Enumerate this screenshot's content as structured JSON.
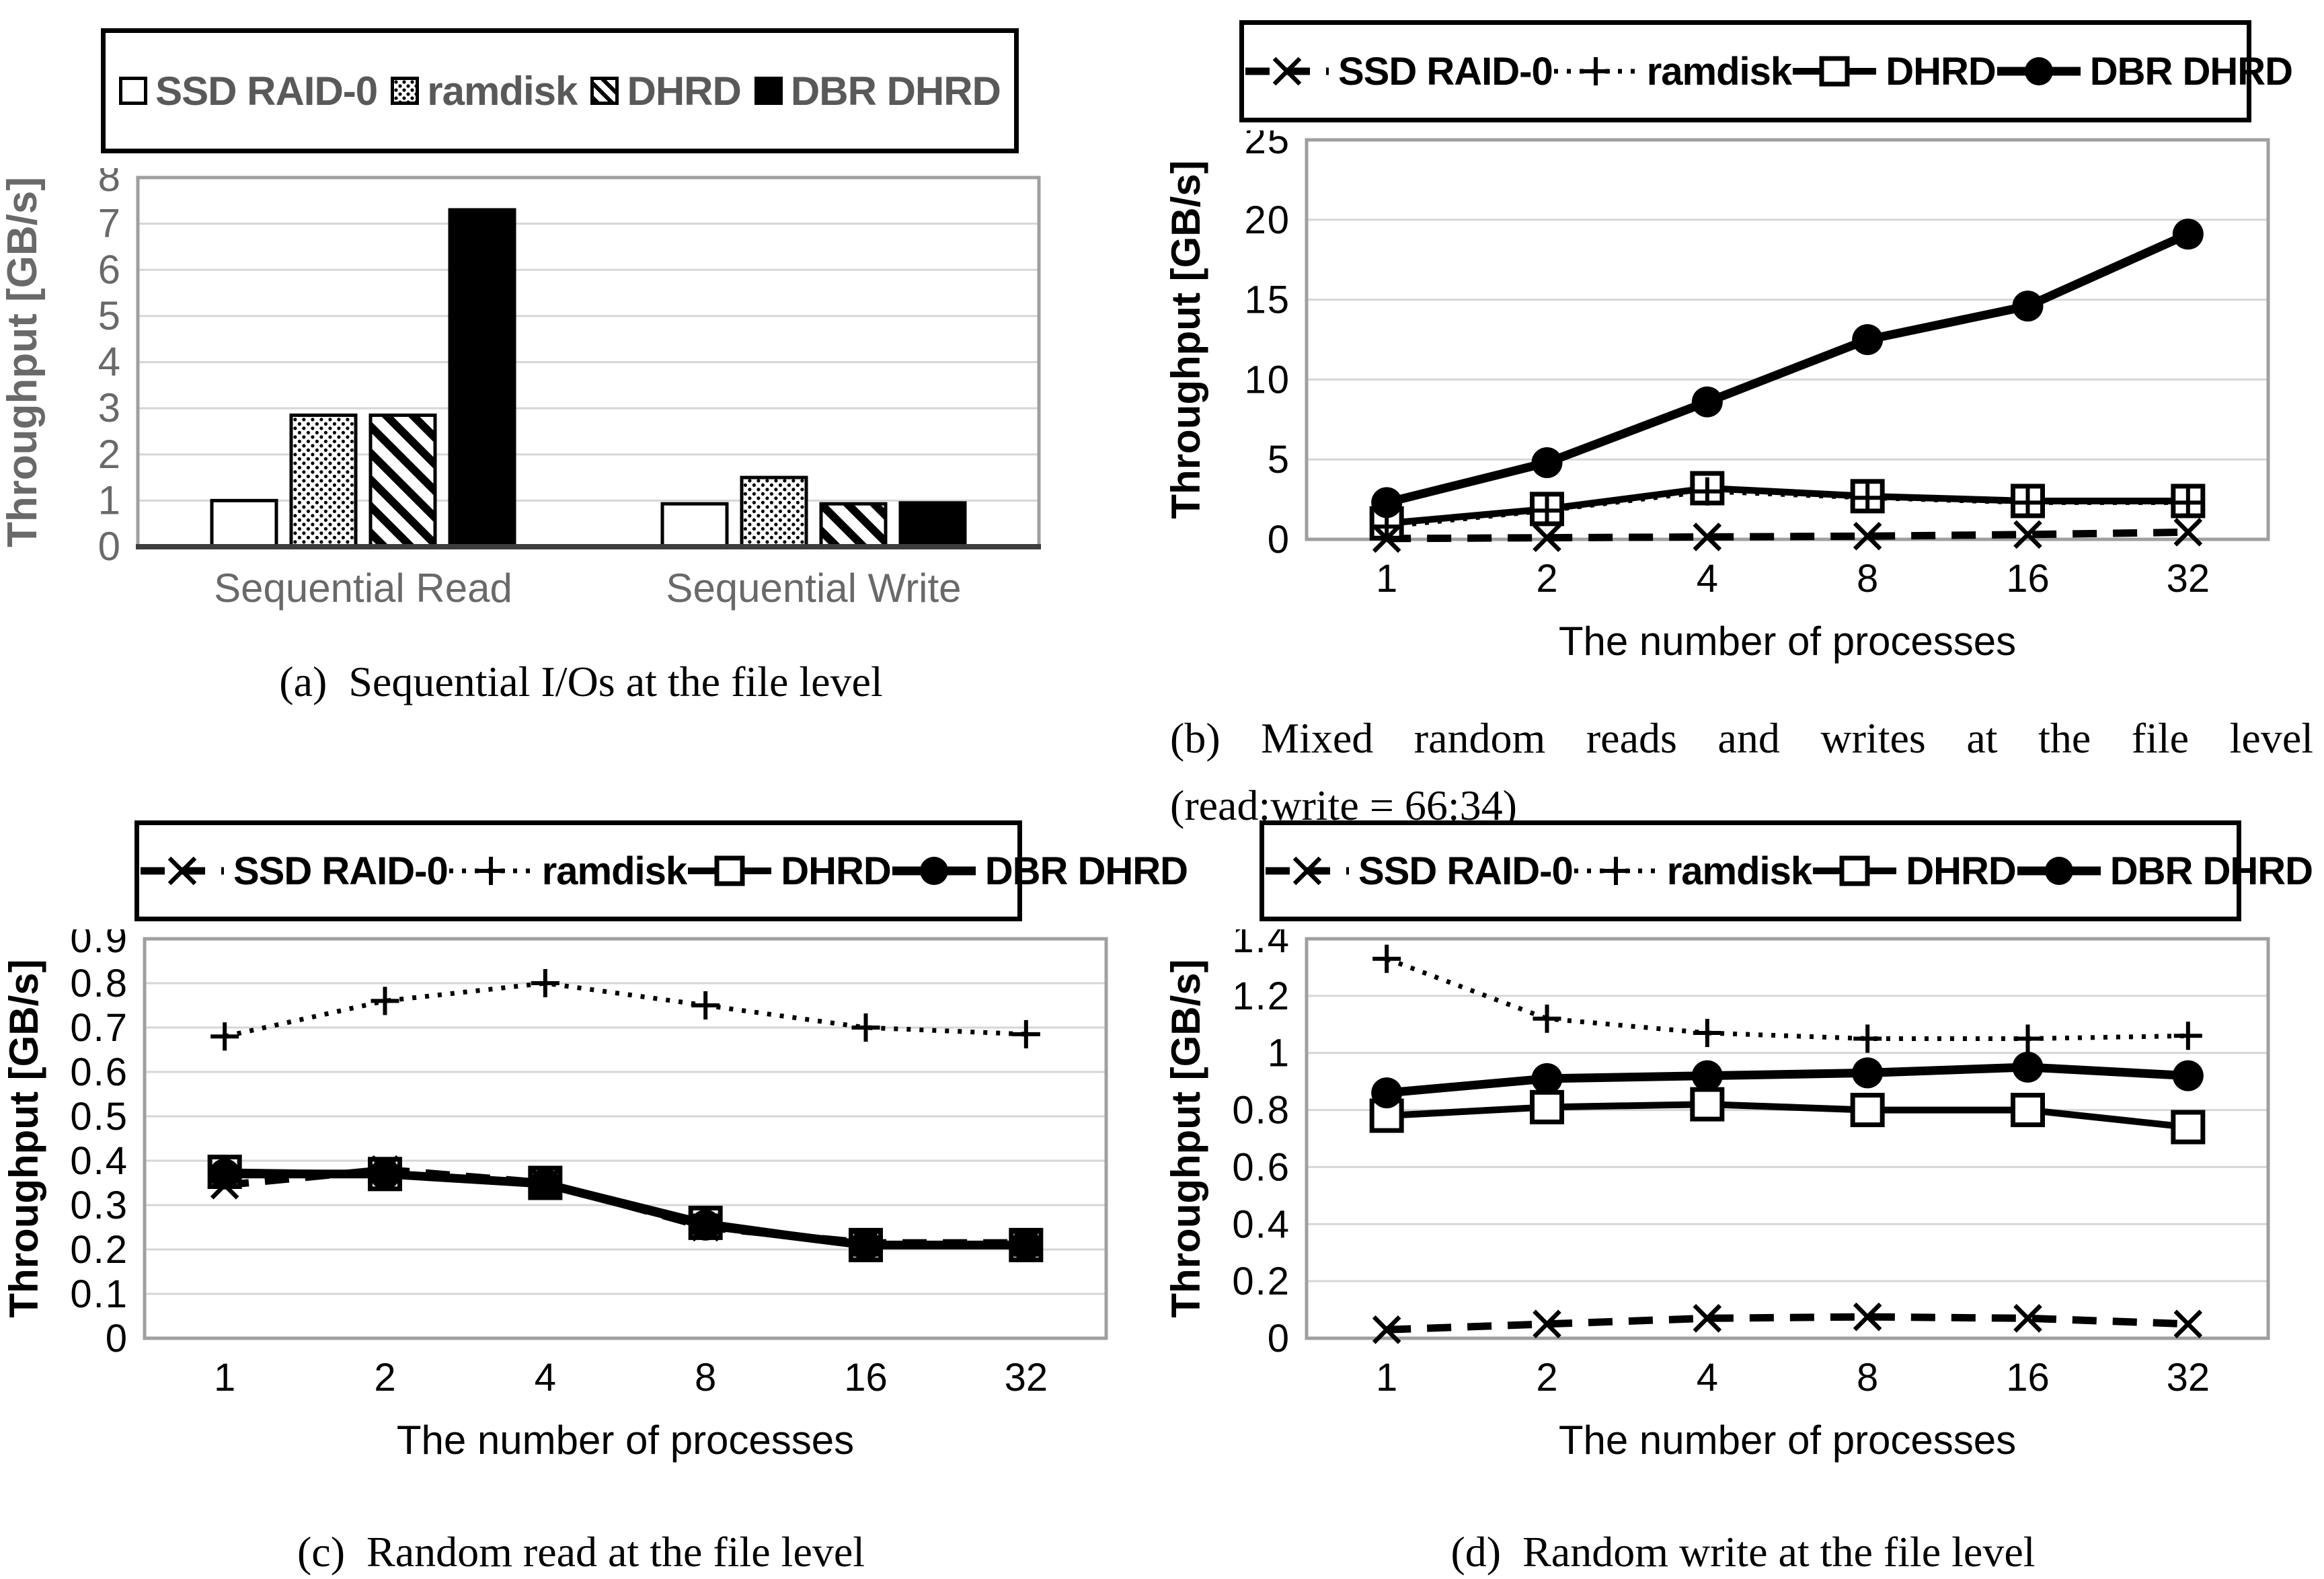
{
  "panels": {
    "a": {
      "caption": "(a)  Sequential I/Os at the file level"
    },
    "b": {
      "caption_line1": "(b) Mixed random reads and writes at the file level",
      "caption_line2": "(read:write = 66:34)"
    },
    "c": {
      "caption": "(c)  Random read at the file level"
    },
    "d": {
      "caption": "(d)  Random write at the file level"
    }
  },
  "colors": {
    "series_black": "#000000",
    "panel_a_text_gray": "#696969",
    "legend_a_text_gray": "#595959",
    "plot_border_gray": "#9f9f9f",
    "gridline_gray": "#d6d6d6",
    "axis_dark": "#3d3d3d",
    "background": "#ffffff"
  },
  "chart_data": [
    {
      "id": "a",
      "type": "bar",
      "title": "(a) Sequential I/Os at the file level",
      "ylabel": "Throughput [GB/s]",
      "xlabel": "",
      "ylim": [
        0,
        8
      ],
      "ystep": 1,
      "grid": true,
      "legend_position": "top",
      "categories": [
        "Sequential Read",
        "Sequential Write"
      ],
      "series": [
        {
          "name": "SSD RAID-0",
          "pattern": "empty",
          "values": [
            1.0,
            0.93
          ]
        },
        {
          "name": "ramdisk",
          "pattern": "dots",
          "values": [
            2.85,
            1.5
          ]
        },
        {
          "name": "DHRD",
          "pattern": "hatch",
          "values": [
            2.85,
            0.93
          ]
        },
        {
          "name": "DBR DHRD",
          "pattern": "solid",
          "values": [
            7.3,
            0.95
          ]
        }
      ]
    },
    {
      "id": "b",
      "type": "line",
      "title": "(b) Mixed random reads and writes at the file level (read:write = 66:34)",
      "ylabel": "Throughput [GB/s]",
      "xlabel": "The number of processes",
      "ylim": [
        0,
        25
      ],
      "ystep": 5,
      "grid": true,
      "legend_position": "top",
      "categories": [
        1,
        2,
        4,
        8,
        16,
        32
      ],
      "series": [
        {
          "name": "SSD RAID-0",
          "line": "dashed",
          "marker": "x",
          "values": [
            0.05,
            0.1,
            0.15,
            0.2,
            0.3,
            0.45
          ]
        },
        {
          "name": "ramdisk",
          "line": "dotted",
          "marker": "plus",
          "values": [
            0.8,
            1.8,
            3.0,
            2.6,
            2.3,
            2.3
          ]
        },
        {
          "name": "DHRD",
          "line": "solid",
          "marker": "square",
          "values": [
            1.0,
            1.9,
            3.2,
            2.7,
            2.4,
            2.4
          ]
        },
        {
          "name": "DBR DHRD",
          "line": "solid",
          "marker": "circle",
          "values": [
            2.3,
            4.8,
            8.6,
            12.5,
            14.6,
            19.1
          ]
        }
      ]
    },
    {
      "id": "c",
      "type": "line",
      "title": "(c) Random read at the file level",
      "ylabel": "Throughput [GB/s]",
      "xlabel": "The number of processes",
      "ylim": [
        0,
        0.9
      ],
      "ystep": 0.1,
      "grid": true,
      "legend_position": "top",
      "categories": [
        1,
        2,
        4,
        8,
        16,
        32
      ],
      "series": [
        {
          "name": "SSD RAID-0",
          "line": "dashed",
          "marker": "x",
          "values": [
            0.345,
            0.38,
            0.35,
            0.25,
            0.215,
            0.215
          ]
        },
        {
          "name": "ramdisk",
          "line": "dotted",
          "marker": "plus",
          "values": [
            0.68,
            0.76,
            0.8,
            0.75,
            0.7,
            0.685
          ]
        },
        {
          "name": "DHRD",
          "line": "solid",
          "marker": "square",
          "values": [
            0.375,
            0.37,
            0.35,
            0.26,
            0.21,
            0.21
          ]
        },
        {
          "name": "DBR DHRD",
          "line": "solid",
          "marker": "circle",
          "values": [
            0.37,
            0.37,
            0.348,
            0.255,
            0.21,
            0.21
          ]
        }
      ]
    },
    {
      "id": "d",
      "type": "line",
      "title": "(d) Random write at the file level",
      "ylabel": "Throughput [GB/s]",
      "xlabel": "The number of processes",
      "ylim": [
        0,
        1.4
      ],
      "ystep": 0.2,
      "grid": true,
      "legend_position": "top",
      "categories": [
        1,
        2,
        4,
        8,
        16,
        32
      ],
      "series": [
        {
          "name": "SSD RAID-0",
          "line": "dashed",
          "marker": "x",
          "values": [
            0.03,
            0.05,
            0.07,
            0.075,
            0.07,
            0.05
          ]
        },
        {
          "name": "ramdisk",
          "line": "dotted",
          "marker": "plus",
          "values": [
            1.33,
            1.12,
            1.07,
            1.05,
            1.05,
            1.06
          ]
        },
        {
          "name": "DHRD",
          "line": "solid",
          "marker": "square",
          "values": [
            0.78,
            0.81,
            0.82,
            0.8,
            0.8,
            0.74
          ]
        },
        {
          "name": "DBR DHRD",
          "line": "solid",
          "marker": "circle",
          "values": [
            0.86,
            0.91,
            0.92,
            0.93,
            0.95,
            0.92
          ]
        }
      ]
    }
  ]
}
